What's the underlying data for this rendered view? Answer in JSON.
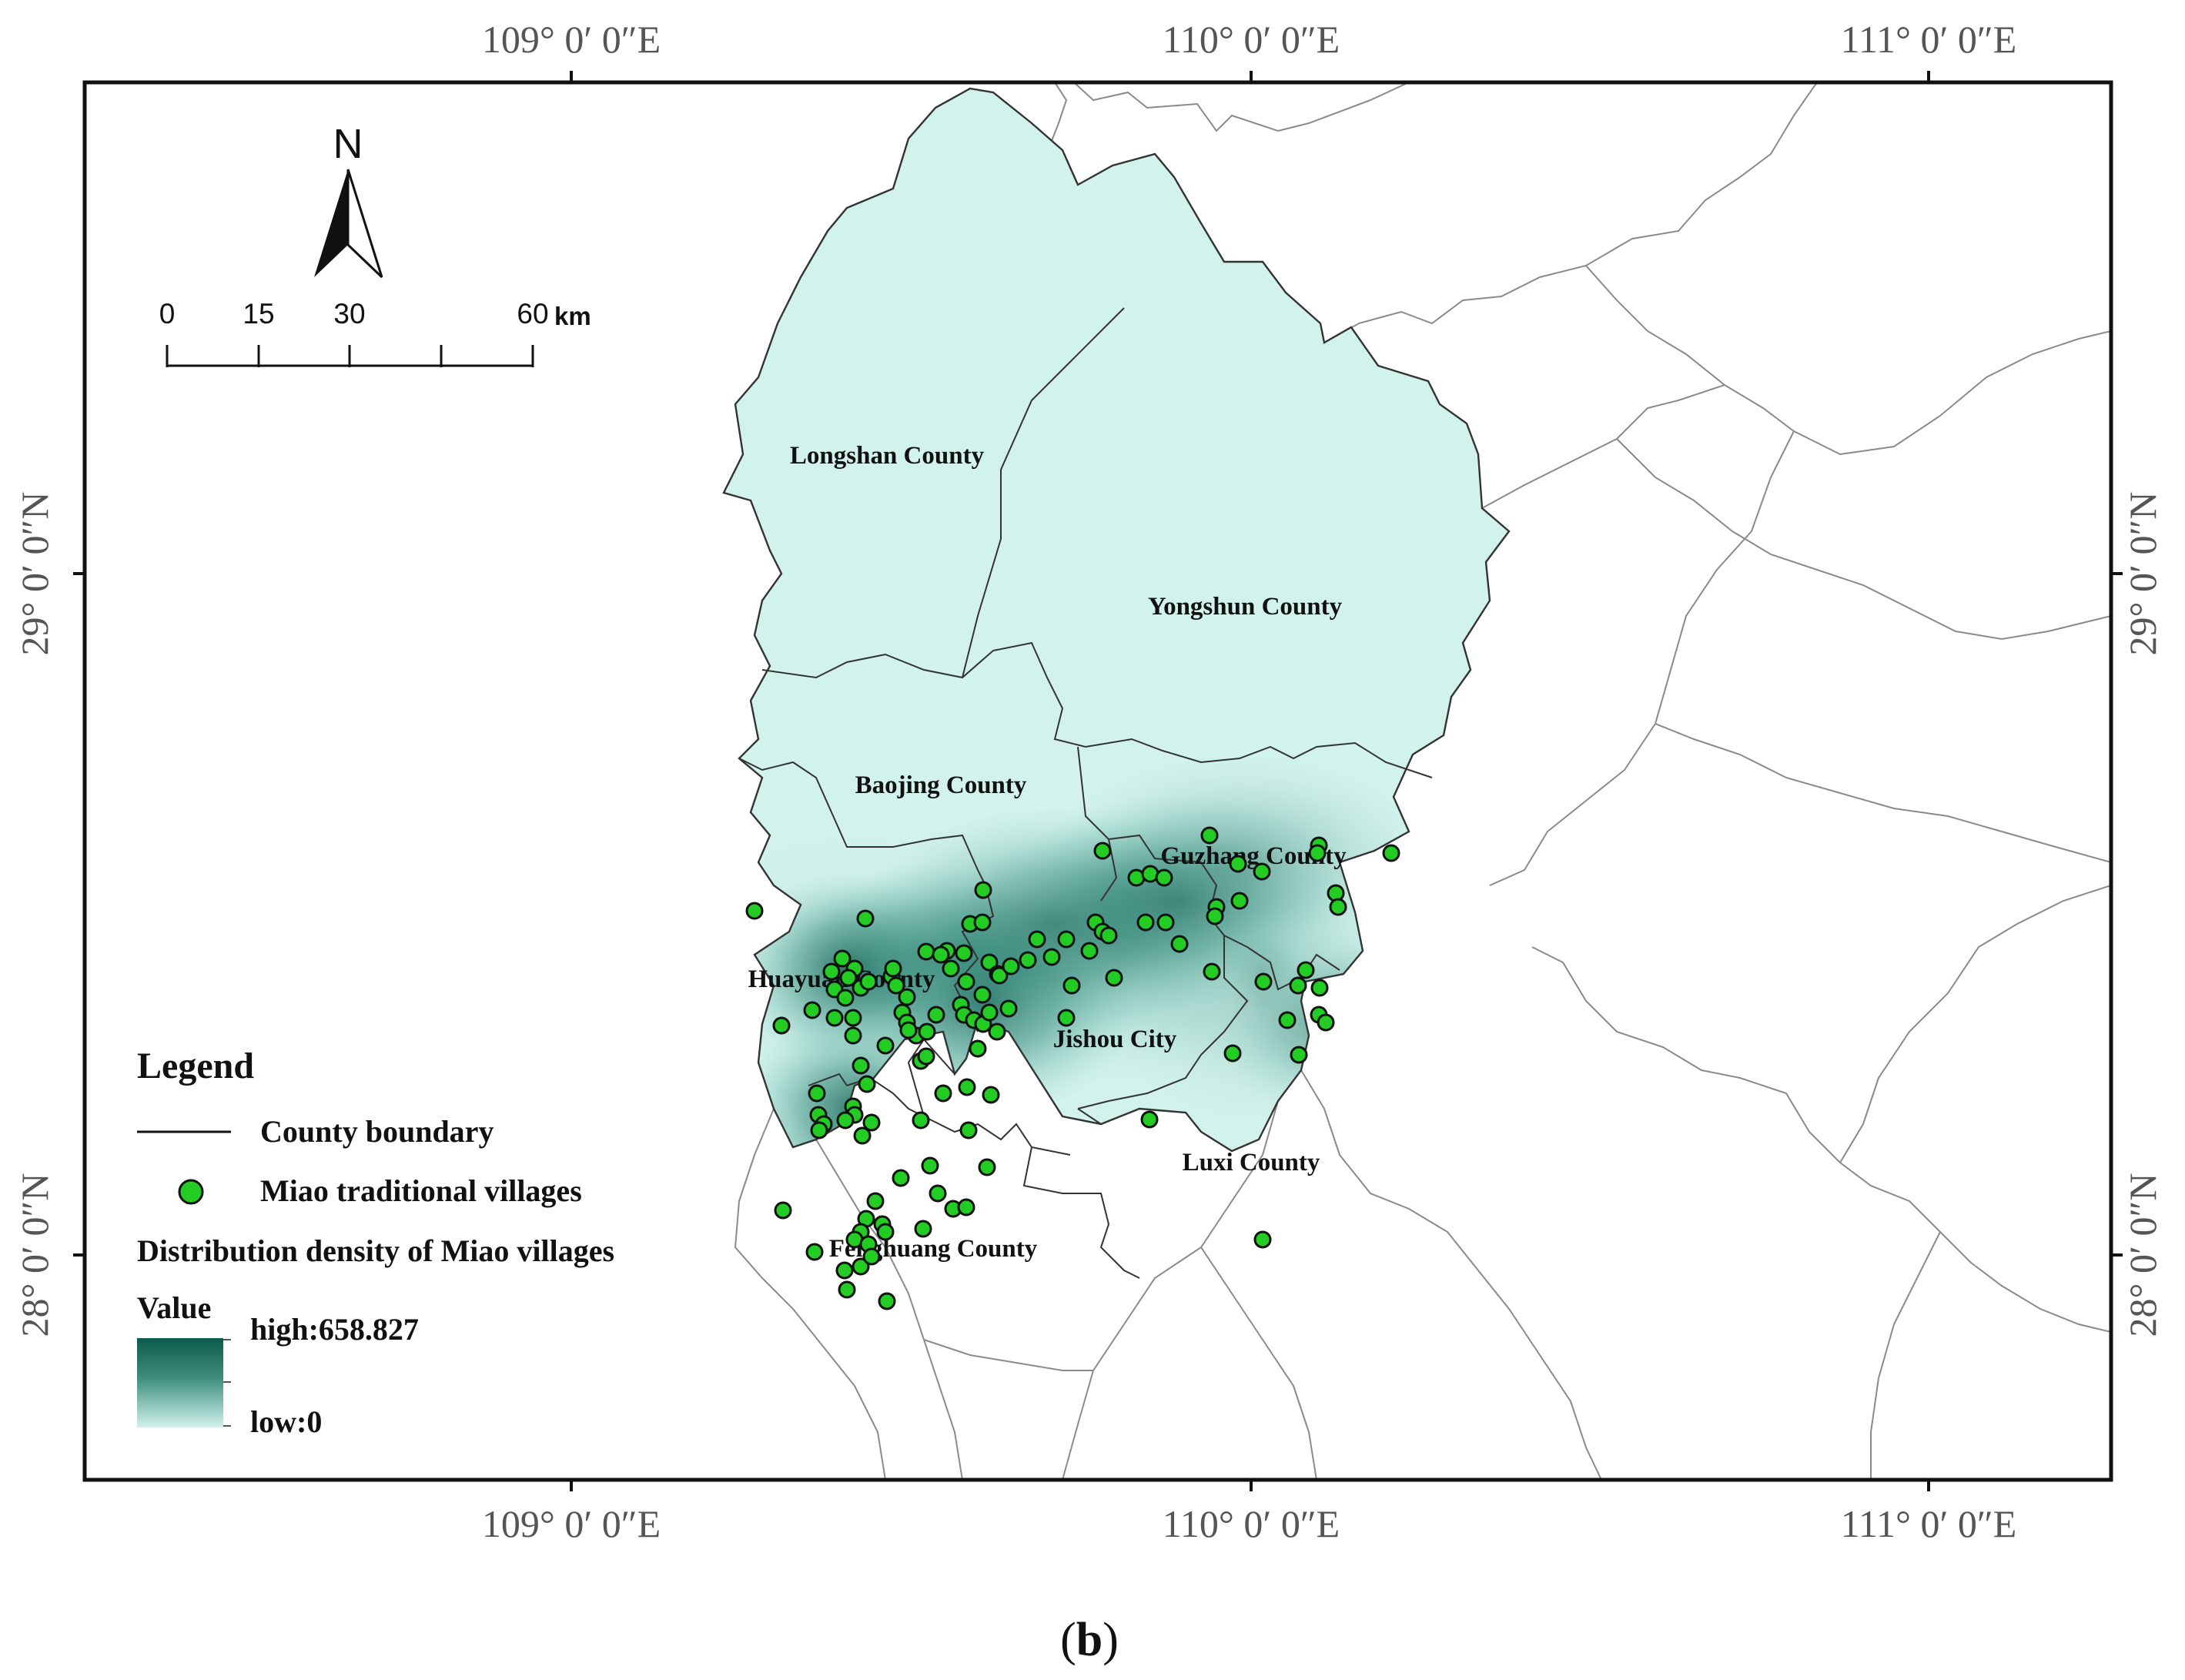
{
  "graticule": {
    "top": [
      "109° 0′ 0″E",
      "110° 0′ 0″E",
      "111° 0′ 0″E"
    ],
    "bottom": [
      "109° 0′ 0″E",
      "110° 0′ 0″E",
      "111° 0′ 0″E"
    ],
    "left": [
      "29° 0′ 0″N",
      "28° 0′ 0″N"
    ],
    "right": [
      "29° 0′ 0″N",
      "28° 0′ 0″N"
    ]
  },
  "north_arrow": {
    "label": "N"
  },
  "scale_bar": {
    "ticks": [
      "0",
      "15",
      "30",
      "60"
    ],
    "unit": "km"
  },
  "counties": {
    "longshan": "Longshan County",
    "yongshun": "Yongshun County",
    "baojing": "Baojing County",
    "guzhang": "Guzhang County",
    "huayuan": "Huayuan County",
    "jishou": "Jishou City",
    "luxi": "Luxi County",
    "fenghuang": "Fenghuang County"
  },
  "legend": {
    "title": "Legend",
    "boundary_label": "County boundary",
    "village_label": "Miao traditional villages",
    "density_label": "Distribution density of Miao villages",
    "value_label": "Value",
    "high_label": "high:658.827",
    "low_label": "low:0"
  },
  "caption": {
    "open": "(",
    "letter": "b",
    "close": ")"
  },
  "colors": {
    "region_fill": "#d2f2ec",
    "density_high": "#0d5a4d",
    "village_fill": "#22cc22",
    "village_stroke": "#111111",
    "outer_boundary": "#8a8a8a"
  },
  "density": {
    "high": 658.827,
    "low": 0
  },
  "village_count": 128
}
